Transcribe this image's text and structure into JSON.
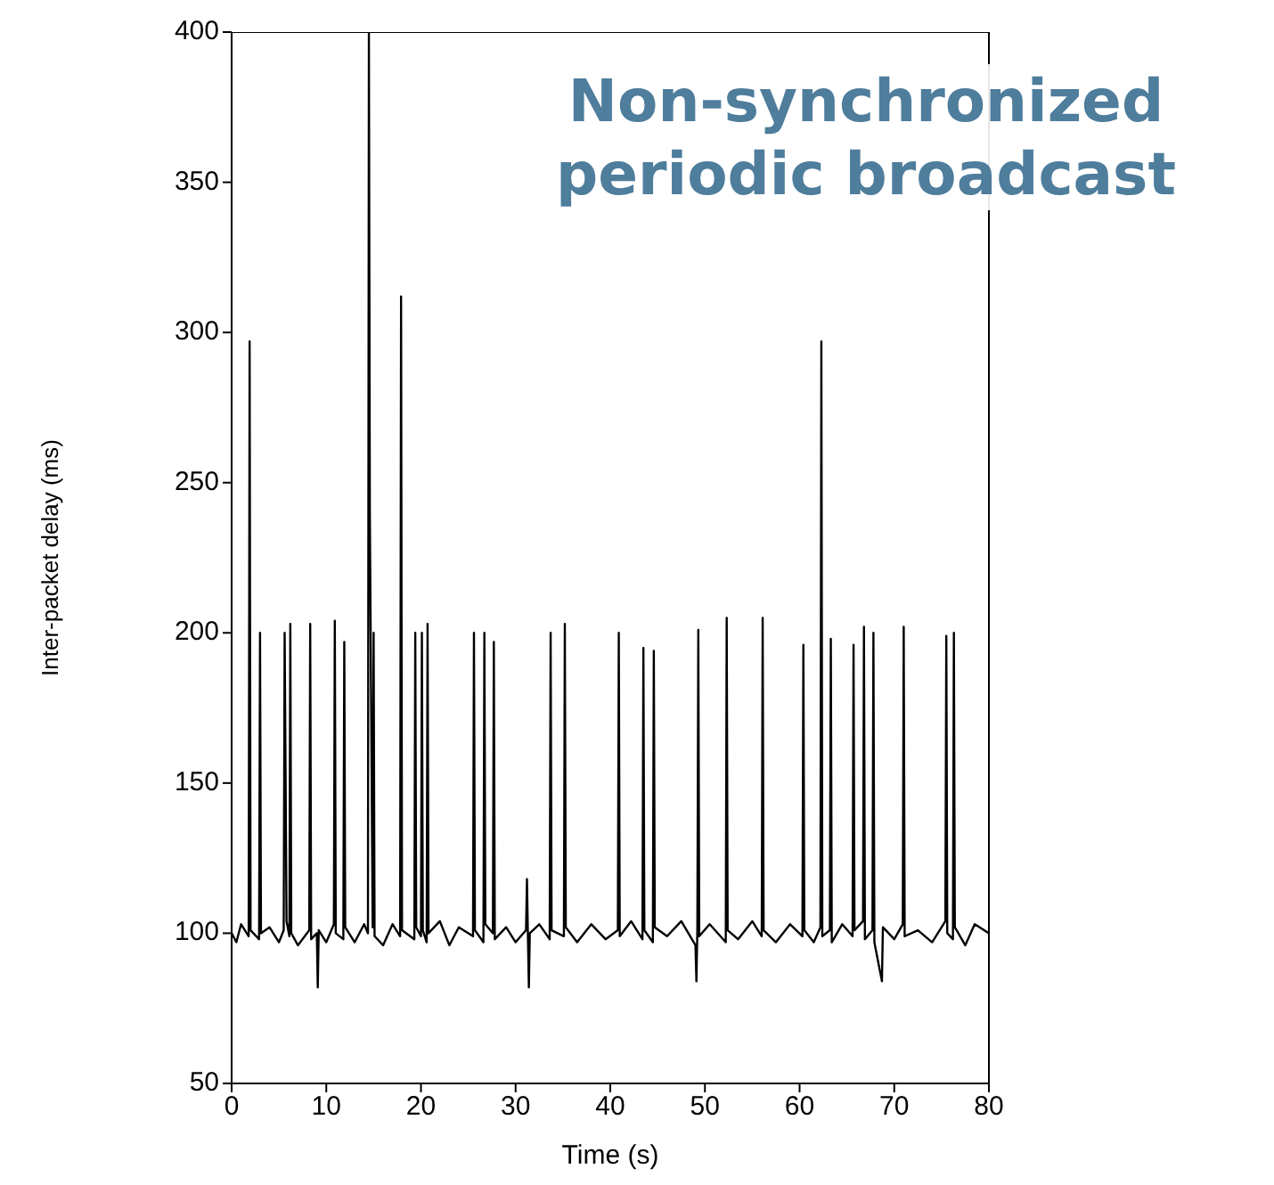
{
  "chart_data": {
    "type": "line",
    "xlabel": "Time (s)",
    "ylabel": "Inter-packet delay (ms)",
    "annotations": [
      "Non-synchronized periodic broadcast"
    ],
    "xlim": [
      0,
      80
    ],
    "xticks": [
      0,
      10,
      20,
      30,
      40,
      50,
      60,
      70,
      80
    ],
    "ylim": [
      50,
      400
    ],
    "yticks": [
      50,
      100,
      150,
      200,
      250,
      300,
      350,
      400
    ],
    "marker": "none",
    "line_style": "solid",
    "series": [
      {
        "color": "#000000",
        "x": [
          0,
          0.5,
          1,
          1.8,
          1.9,
          2.0,
          2.9,
          3.0,
          3.1,
          4,
          5,
          5.5,
          5.6,
          5.8,
          6.1,
          6.2,
          6.3,
          7,
          8.2,
          8.3,
          8.4,
          9.0,
          9.1,
          9.2,
          10,
          10.8,
          10.9,
          11.0,
          11.8,
          11.9,
          12.0,
          13,
          14,
          14.4,
          14.5,
          14.6,
          14.9,
          15.0,
          15.1,
          16,
          17,
          17.8,
          17.9,
          18.0,
          19.3,
          19.4,
          19.5,
          20.0,
          20.1,
          20.2,
          20.6,
          20.7,
          20.8,
          22,
          23,
          24,
          25.5,
          25.6,
          25.7,
          26.6,
          26.7,
          26.8,
          27.6,
          27.7,
          27.8,
          29,
          30,
          31.1,
          31.2,
          31.3,
          31.4,
          31.5,
          32.5,
          33.6,
          33.7,
          33.8,
          35.1,
          35.2,
          35.3,
          36.5,
          38,
          39.5,
          40.8,
          40.9,
          41.0,
          42.2,
          43.4,
          43.5,
          43.6,
          44.5,
          44.6,
          44.7,
          46,
          47.5,
          49.0,
          49.1,
          49.2,
          49.3,
          49.4,
          50.5,
          52.2,
          52.3,
          52.4,
          53.5,
          55,
          56,
          56.1,
          56.2,
          57.5,
          59,
          60.3,
          60.4,
          60.5,
          61.5,
          62.2,
          62.3,
          62.4,
          63.2,
          63.3,
          63.4,
          64.5,
          65.6,
          65.7,
          65.8,
          66.7,
          66.8,
          66.9,
          67.7,
          67.8,
          67.9,
          68.7,
          68.8,
          70,
          70.9,
          71.0,
          71.1,
          72.5,
          74,
          75.4,
          75.5,
          75.6,
          76.2,
          76.3,
          76.4,
          77.5,
          78.5,
          80
        ],
        "values": [
          100,
          97,
          103,
          99,
          297,
          101,
          98,
          200,
          100,
          102,
          97,
          101,
          200,
          104,
          99,
          203,
          100,
          96,
          101,
          203,
          98,
          100,
          82,
          101,
          97,
          103,
          204,
          100,
          98,
          197,
          102,
          97,
          103,
          100,
          400,
          240,
          102,
          200,
          99,
          96,
          103,
          99,
          312,
          101,
          98,
          200,
          102,
          99,
          200,
          101,
          97,
          203,
          100,
          104,
          96,
          102,
          99,
          200,
          101,
          97,
          200,
          103,
          100,
          197,
          98,
          102,
          97,
          101,
          118,
          99,
          82,
          100,
          103,
          98,
          200,
          101,
          99,
          203,
          102,
          97,
          103,
          98,
          101,
          200,
          99,
          104,
          98,
          195,
          101,
          97,
          194,
          102,
          99,
          104,
          96,
          84,
          101,
          201,
          99,
          103,
          97,
          205,
          101,
          98,
          104,
          99,
          205,
          101,
          97,
          103,
          99,
          196,
          101,
          97,
          102,
          297,
          99,
          101,
          198,
          97,
          103,
          99,
          196,
          101,
          104,
          202,
          98,
          101,
          200,
          97,
          84,
          102,
          98,
          103,
          202,
          99,
          101,
          97,
          104,
          199,
          100,
          98,
          200,
          102,
          96,
          103,
          100
        ]
      }
    ]
  }
}
